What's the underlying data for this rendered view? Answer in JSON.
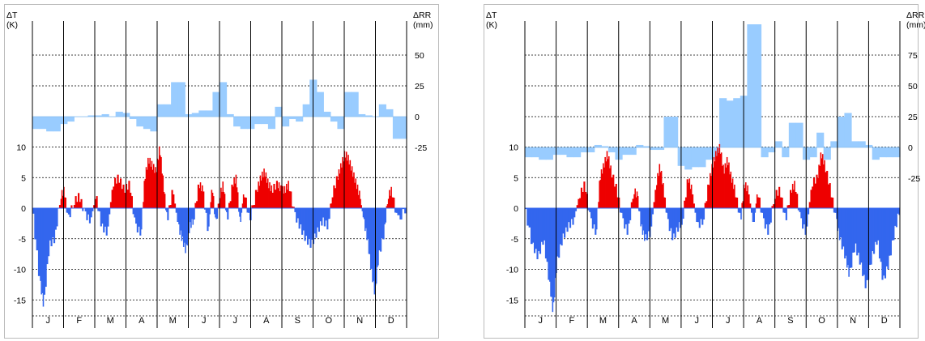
{
  "chart_data": [
    {
      "type": "bar",
      "title": "",
      "xlabel": "",
      "months": [
        "J",
        "F",
        "M",
        "A",
        "M",
        "J",
        "J",
        "A",
        "S",
        "O",
        "N",
        "D"
      ],
      "left_axis": {
        "label_line1": "ΔT",
        "label_line2": "(K)",
        "ylim": [
          -17,
          10
        ],
        "ticks": [
          10,
          5,
          0,
          -5,
          -10,
          -15
        ]
      },
      "right_axis": {
        "label_line1": "ΔRR",
        "label_line2": "(mm)",
        "ylim": [
          -25,
          50
        ],
        "ticks": [
          50,
          25,
          0,
          -25
        ]
      },
      "colors": {
        "temp_pos": "#ee0000",
        "temp_neg": "#3366ee",
        "precip": "#99ccff"
      },
      "series": [
        {
          "axis": "right",
          "kind": "precip",
          "values": [
            -10,
            -10,
            -12,
            -12,
            -6,
            -4,
            0,
            0,
            1,
            1,
            2,
            0,
            4,
            3,
            -2,
            -8,
            -10,
            -12,
            10,
            10,
            28,
            28,
            2,
            3,
            5,
            5,
            20,
            28,
            2,
            -8,
            -10,
            -10,
            -6,
            -6,
            -10,
            8,
            -8,
            -2,
            -4,
            10,
            30,
            20,
            4,
            -4,
            -10,
            20,
            20,
            2,
            1,
            0,
            10,
            6,
            -18,
            -18
          ]
        },
        {
          "axis": "left",
          "kind": "temp_daily",
          "segments": [
            [
              0,
              0
            ],
            [
              0.02,
              -12
            ],
            [
              0.03,
              -16
            ],
            [
              0.045,
              -6
            ],
            [
              0.06,
              -5
            ],
            [
              0.075,
              2
            ],
            [
              0.085,
              3
            ],
            [
              0.095,
              -2
            ],
            [
              0.11,
              1
            ],
            [
              0.125,
              2
            ],
            [
              0.14,
              -1
            ],
            [
              0.155,
              -2
            ],
            [
              0.17,
              2
            ],
            [
              0.185,
              -3
            ],
            [
              0.2,
              -4
            ],
            [
              0.215,
              4
            ],
            [
              0.23,
              5
            ],
            [
              0.245,
              3
            ],
            [
              0.26,
              4
            ],
            [
              0.275,
              -3
            ],
            [
              0.29,
              -4
            ],
            [
              0.3,
              5
            ],
            [
              0.31,
              8
            ],
            [
              0.32,
              7
            ],
            [
              0.33,
              6
            ],
            [
              0.34,
              10
            ],
            [
              0.35,
              4
            ],
            [
              0.36,
              -2
            ],
            [
              0.375,
              3
            ],
            [
              0.39,
              -3
            ],
            [
              0.4,
              -5
            ],
            [
              0.41,
              -7
            ],
            [
              0.42,
              -3
            ],
            [
              0.43,
              -2
            ],
            [
              0.445,
              4
            ],
            [
              0.455,
              3
            ],
            [
              0.47,
              -4
            ],
            [
              0.48,
              4
            ],
            [
              0.49,
              -3
            ],
            [
              0.5,
              2
            ],
            [
              0.51,
              4
            ],
            [
              0.52,
              -2
            ],
            [
              0.535,
              4
            ],
            [
              0.545,
              5
            ],
            [
              0.555,
              -3
            ],
            [
              0.565,
              3
            ],
            [
              0.58,
              -2
            ],
            [
              0.6,
              3
            ],
            [
              0.61,
              5
            ],
            [
              0.62,
              6
            ],
            [
              0.63,
              4
            ],
            [
              0.64,
              3
            ],
            [
              0.655,
              4
            ],
            [
              0.665,
              3
            ],
            [
              0.675,
              3
            ],
            [
              0.685,
              4
            ],
            [
              0.7,
              -1
            ],
            [
              0.715,
              -3
            ],
            [
              0.73,
              -5
            ],
            [
              0.745,
              -6
            ],
            [
              0.76,
              -4
            ],
            [
              0.775,
              -2
            ],
            [
              0.79,
              -3
            ],
            [
              0.8,
              2
            ],
            [
              0.815,
              5
            ],
            [
              0.825,
              7
            ],
            [
              0.835,
              9
            ],
            [
              0.845,
              8
            ],
            [
              0.855,
              6
            ],
            [
              0.865,
              4
            ],
            [
              0.875,
              2
            ],
            [
              0.885,
              -2
            ],
            [
              0.895,
              -5
            ],
            [
              0.905,
              -10
            ],
            [
              0.915,
              -14
            ],
            [
              0.925,
              -8
            ],
            [
              0.94,
              -4
            ],
            [
              0.95,
              2
            ],
            [
              0.96,
              3
            ],
            [
              0.975,
              -2
            ],
            [
              1,
              0
            ]
          ]
        }
      ]
    },
    {
      "type": "bar",
      "title": "",
      "xlabel": "",
      "months": [
        "J",
        "F",
        "M",
        "A",
        "M",
        "J",
        "J",
        "A",
        "S",
        "O",
        "N",
        "D"
      ],
      "left_axis": {
        "label_line1": "ΔT",
        "label_line2": "(K)",
        "ylim": [
          -17,
          10
        ],
        "ticks": [
          10,
          5,
          0,
          -5,
          -10,
          -15
        ]
      },
      "right_axis": {
        "label_line1": "ΔRR",
        "label_line2": "(mm)",
        "ylim": [
          -25,
          100
        ],
        "ticks": [
          75,
          50,
          25,
          0,
          -25
        ]
      },
      "colors": {
        "temp_pos": "#ee0000",
        "temp_neg": "#3366ee",
        "precip": "#99ccff"
      },
      "series": [
        {
          "axis": "right",
          "kind": "precip",
          "values": [
            -8,
            -8,
            -10,
            -10,
            -6,
            -6,
            -8,
            -8,
            -4,
            -4,
            2,
            1,
            -4,
            -10,
            -6,
            -6,
            2,
            1,
            -2,
            -2,
            25,
            25,
            -15,
            -18,
            -16,
            -16,
            -10,
            -10,
            40,
            38,
            40,
            42,
            100,
            100,
            -8,
            -4,
            5,
            -8,
            20,
            20,
            -10,
            -8,
            12,
            -10,
            5,
            25,
            28,
            5,
            5,
            2,
            -10,
            -8,
            -8,
            -8
          ]
        },
        {
          "axis": "left",
          "kind": "temp_daily",
          "segments": [
            [
              0,
              0
            ],
            [
              0.02,
              -6
            ],
            [
              0.035,
              -8
            ],
            [
              0.05,
              -5
            ],
            [
              0.065,
              -12
            ],
            [
              0.075,
              -17
            ],
            [
              0.085,
              -9
            ],
            [
              0.1,
              -5
            ],
            [
              0.115,
              -3
            ],
            [
              0.13,
              -2
            ],
            [
              0.145,
              2
            ],
            [
              0.16,
              4
            ],
            [
              0.175,
              -2
            ],
            [
              0.19,
              -4
            ],
            [
              0.2,
              5
            ],
            [
              0.21,
              7
            ],
            [
              0.22,
              9
            ],
            [
              0.23,
              6
            ],
            [
              0.245,
              3
            ],
            [
              0.26,
              -2
            ],
            [
              0.275,
              -4
            ],
            [
              0.29,
              3
            ],
            [
              0.3,
              2
            ],
            [
              0.31,
              -3
            ],
            [
              0.32,
              -5
            ],
            [
              0.335,
              -4
            ],
            [
              0.35,
              4
            ],
            [
              0.36,
              7
            ],
            [
              0.37,
              3
            ],
            [
              0.38,
              -2
            ],
            [
              0.395,
              -5
            ],
            [
              0.41,
              -3
            ],
            [
              0.42,
              -2
            ],
            [
              0.435,
              5
            ],
            [
              0.445,
              3
            ],
            [
              0.46,
              -3
            ],
            [
              0.475,
              -2
            ],
            [
              0.49,
              4
            ],
            [
              0.5,
              7
            ],
            [
              0.51,
              9
            ],
            [
              0.52,
              10
            ],
            [
              0.53,
              6
            ],
            [
              0.54,
              8
            ],
            [
              0.55,
              5
            ],
            [
              0.56,
              3
            ],
            [
              0.575,
              -2
            ],
            [
              0.585,
              4
            ],
            [
              0.595,
              3
            ],
            [
              0.61,
              -3
            ],
            [
              0.62,
              3
            ],
            [
              0.635,
              -2
            ],
            [
              0.65,
              -4
            ],
            [
              0.665,
              2
            ],
            [
              0.68,
              3
            ],
            [
              0.695,
              -2
            ],
            [
              0.71,
              3
            ],
            [
              0.72,
              4
            ],
            [
              0.735,
              -2
            ],
            [
              0.75,
              -4
            ],
            [
              0.765,
              4
            ],
            [
              0.78,
              5
            ],
            [
              0.79,
              9
            ],
            [
              0.8,
              7
            ],
            [
              0.815,
              3
            ],
            [
              0.83,
              -2
            ],
            [
              0.84,
              -5
            ],
            [
              0.855,
              -8
            ],
            [
              0.865,
              -11
            ],
            [
              0.88,
              -6
            ],
            [
              0.895,
              -9
            ],
            [
              0.91,
              -13
            ],
            [
              0.925,
              -8
            ],
            [
              0.94,
              -5
            ],
            [
              0.955,
              -12
            ],
            [
              0.97,
              -9
            ],
            [
              0.985,
              -4
            ],
            [
              1,
              0
            ]
          ]
        }
      ]
    }
  ]
}
